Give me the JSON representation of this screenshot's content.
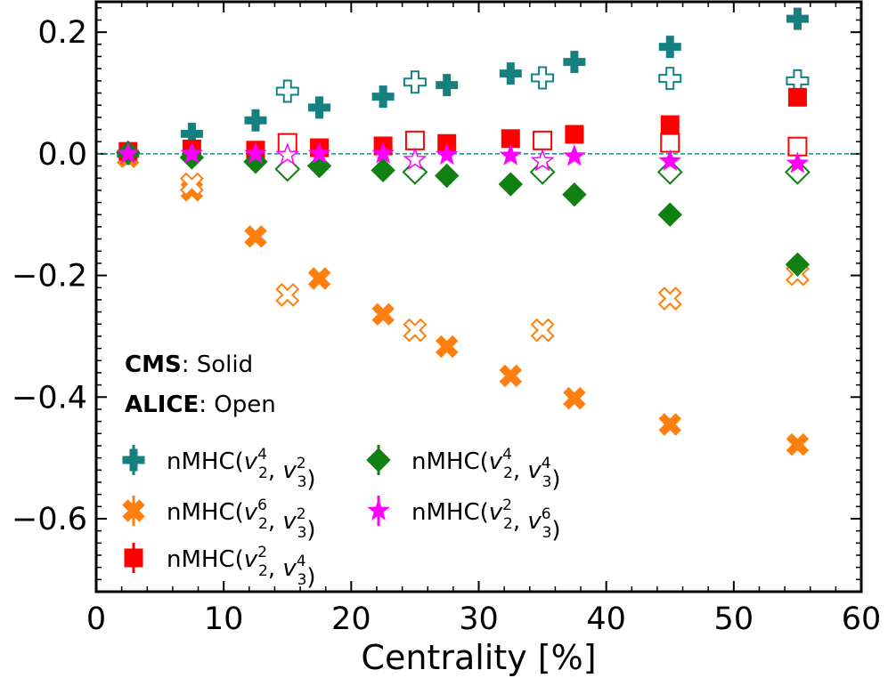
{
  "chart_data": {
    "type": "scatter",
    "xlabel": "Centrality [%]",
    "ylabel": "",
    "xlim": [
      0,
      60
    ],
    "ylim": [
      -0.72,
      0.25
    ],
    "xticks": [
      0,
      10,
      20,
      30,
      40,
      50,
      60
    ],
    "xtick_labels": [
      "0",
      "10",
      "20",
      "30",
      "40",
      "50",
      "60"
    ],
    "yticks": [
      -0.6,
      -0.4,
      -0.2,
      0.0,
      0.2
    ],
    "ytick_labels": [
      "−0.6",
      "−0.4",
      "−0.2",
      "0.0",
      "0.2"
    ],
    "grid": false,
    "reference_line": {
      "y": 0,
      "style": "dashed",
      "color": "#1a8a8a"
    },
    "annotations": [
      {
        "bold": "CMS",
        "rest": ": Solid"
      },
      {
        "bold": "ALICE",
        "rest": ": Open"
      }
    ],
    "legend_position": "bottom-left",
    "legend": [
      {
        "label_pre": "nMHC(",
        "label_post": ")",
        "terms": [
          [
            "v",
            "2",
            "4"
          ],
          [
            "v",
            "3",
            "2"
          ]
        ],
        "marker": "plus",
        "color": "#168080"
      },
      {
        "label_pre": "nMHC(",
        "label_post": ")",
        "terms": [
          [
            "v",
            "2",
            "6"
          ],
          [
            "v",
            "3",
            "2"
          ]
        ],
        "marker": "x",
        "color": "#ff7f0e"
      },
      {
        "label_pre": "nMHC(",
        "label_post": ")",
        "terms": [
          [
            "v",
            "2",
            "2"
          ],
          [
            "v",
            "3",
            "4"
          ]
        ],
        "marker": "square",
        "color": "#ff0000"
      },
      {
        "label_pre": "nMHC(",
        "label_post": ")",
        "terms": [
          [
            "v",
            "2",
            "4"
          ],
          [
            "v",
            "3",
            "4"
          ]
        ],
        "marker": "diamond",
        "color": "#108010"
      },
      {
        "label_pre": "nMHC(",
        "label_post": ")",
        "terms": [
          [
            "v",
            "2",
            "2"
          ],
          [
            "v",
            "3",
            "6"
          ]
        ],
        "marker": "star",
        "color": "#ff00ff"
      }
    ],
    "series": [
      {
        "experiment": "CMS",
        "fill": "solid",
        "marker": "plus",
        "color": "#168080",
        "x": [
          2.5,
          7.5,
          12.5,
          17.5,
          22.5,
          27.5,
          32.5,
          37.5,
          45,
          55
        ],
        "y": [
          0.0,
          0.033,
          0.055,
          0.076,
          0.094,
          0.113,
          0.132,
          0.151,
          0.176,
          0.222
        ]
      },
      {
        "experiment": "ALICE",
        "fill": "open",
        "marker": "plus",
        "color": "#168080",
        "x": [
          15,
          25,
          35,
          45,
          55
        ],
        "y": [
          0.103,
          0.118,
          0.125,
          0.124,
          0.12
        ]
      },
      {
        "experiment": "CMS",
        "fill": "solid",
        "marker": "x",
        "color": "#ff7f0e",
        "x": [
          2.5,
          7.5,
          12.5,
          17.5,
          22.5,
          27.5,
          32.5,
          37.5,
          45,
          55
        ],
        "y": [
          -0.005,
          -0.06,
          -0.136,
          -0.205,
          -0.264,
          -0.317,
          -0.365,
          -0.402,
          -0.445,
          -0.478
        ]
      },
      {
        "experiment": "ALICE",
        "fill": "open",
        "marker": "x",
        "color": "#ff7f0e",
        "x": [
          7.5,
          15,
          25,
          35,
          45,
          55
        ],
        "y": [
          -0.05,
          -0.232,
          -0.29,
          -0.29,
          -0.238,
          -0.198
        ]
      },
      {
        "experiment": "CMS",
        "fill": "solid",
        "marker": "square",
        "color": "#ff0000",
        "x": [
          2.5,
          7.5,
          12.5,
          17.5,
          22.5,
          27.5,
          32.5,
          37.5,
          45,
          55
        ],
        "y": [
          0.004,
          0.008,
          0.006,
          0.01,
          0.013,
          0.017,
          0.025,
          0.032,
          0.048,
          0.093
        ]
      },
      {
        "experiment": "ALICE",
        "fill": "open",
        "marker": "square",
        "color": "#ff0000",
        "x": [
          15,
          25,
          35,
          45,
          55
        ],
        "y": [
          0.018,
          0.022,
          0.022,
          0.018,
          0.012
        ]
      },
      {
        "experiment": "CMS",
        "fill": "solid",
        "marker": "diamond",
        "color": "#108010",
        "x": [
          2.5,
          7.5,
          12.5,
          17.5,
          22.5,
          27.5,
          32.5,
          37.5,
          45,
          55
        ],
        "y": [
          0.002,
          -0.006,
          -0.013,
          -0.02,
          -0.027,
          -0.036,
          -0.05,
          -0.067,
          -0.1,
          -0.182
        ]
      },
      {
        "experiment": "ALICE",
        "fill": "open",
        "marker": "diamond",
        "color": "#108010",
        "x": [
          15,
          25,
          35,
          45,
          55
        ],
        "y": [
          -0.025,
          -0.03,
          -0.03,
          -0.03,
          -0.03
        ]
      },
      {
        "experiment": "CMS",
        "fill": "solid",
        "marker": "star",
        "color": "#ff00ff",
        "x": [
          2.5,
          7.5,
          12.5,
          17.5,
          22.5,
          27.5,
          32.5,
          37.5,
          45,
          55
        ],
        "y": [
          0.0,
          0.0,
          0.0,
          0.0,
          0.0,
          -0.002,
          -0.003,
          -0.004,
          -0.012,
          -0.016
        ]
      },
      {
        "experiment": "ALICE",
        "fill": "open",
        "marker": "star",
        "color": "#ff00ff",
        "x": [
          15,
          25,
          35
        ],
        "y": [
          -0.002,
          -0.01,
          -0.012
        ]
      }
    ]
  }
}
